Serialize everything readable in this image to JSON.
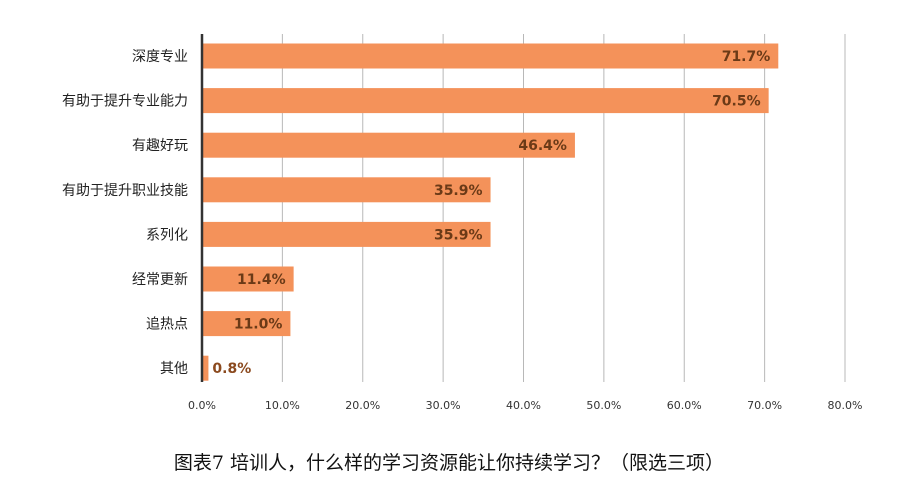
{
  "caption": "图表7   培训人，什么样的学习资源能让你持续学习？（限选三项）",
  "colors": {
    "bar": "#F4925A",
    "value_label_outside": "#8B4A1F",
    "value_label_inside": "#6B3A17",
    "grid": "#B8B8B8",
    "axis": "#333333"
  },
  "chart_data": {
    "type": "bar",
    "orientation": "horizontal",
    "title": "",
    "xlabel": "",
    "ylabel": "",
    "categories": [
      "深度专业",
      "有助于提升专业能力",
      "有趣好玩",
      "有助于提升职业技能",
      "系列化",
      "经常更新",
      "追热点",
      "其他"
    ],
    "values": [
      71.7,
      70.5,
      46.4,
      35.9,
      35.9,
      11.4,
      11.0,
      0.8
    ],
    "value_labels": [
      "71.7%",
      "70.5%",
      "46.4%",
      "35.9%",
      "35.9%",
      "11.4%",
      "11.0%",
      "0.8%"
    ],
    "xlim": [
      0,
      80
    ],
    "x_ticks": [
      0,
      10,
      20,
      30,
      40,
      50,
      60,
      70,
      80
    ],
    "x_tick_labels": [
      "0.0%",
      "10.0%",
      "20.0%",
      "30.0%",
      "40.0%",
      "50.0%",
      "60.0%",
      "70.0%",
      "80.0%"
    ],
    "grid": true,
    "legend": "none"
  }
}
